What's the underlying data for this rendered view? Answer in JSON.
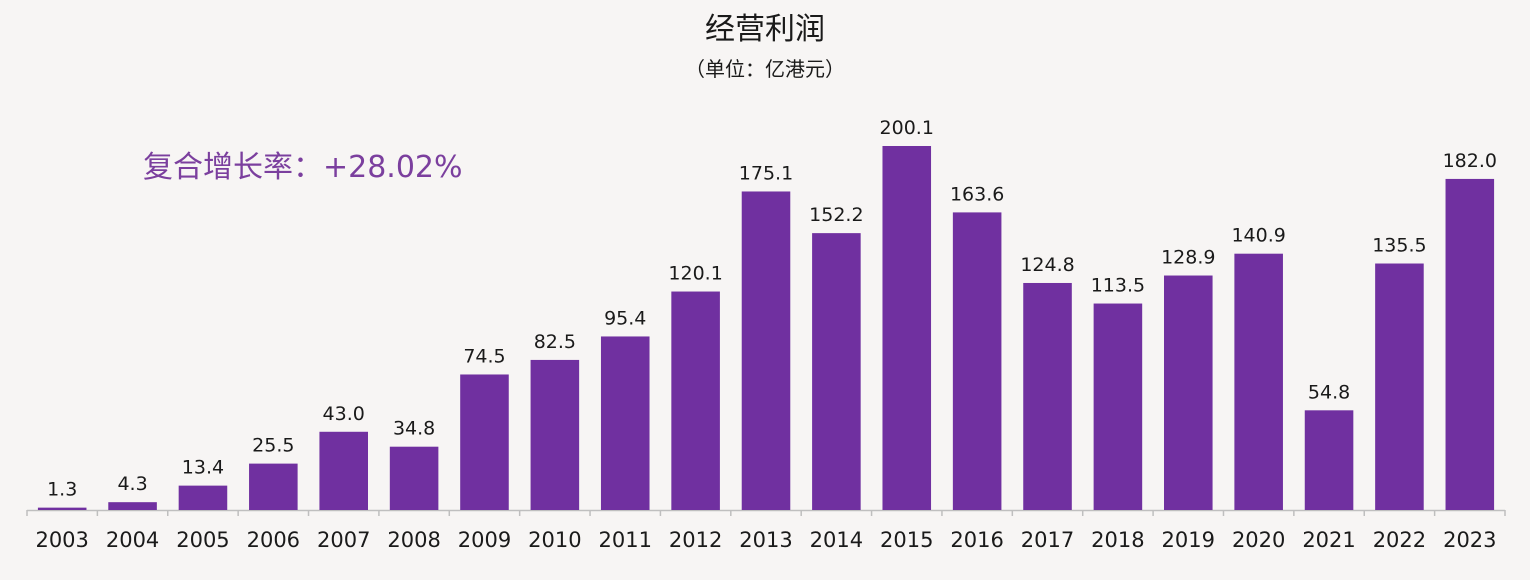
{
  "colors": {
    "bar": "#7030a0",
    "annotation": "#7b3f9e",
    "axis": "#bfbfbf",
    "background": "#f7f5f4"
  },
  "chart_data": {
    "type": "bar",
    "title": "经营利润",
    "subtitle": "（单位：亿港元）",
    "annotation": "复合增长率：+28.02%",
    "categories": [
      "2003",
      "2004",
      "2005",
      "2006",
      "2007",
      "2008",
      "2009",
      "2010",
      "2011",
      "2012",
      "2013",
      "2014",
      "2015",
      "2016",
      "2017",
      "2018",
      "2019",
      "2020",
      "2021",
      "2022",
      "2023"
    ],
    "values": [
      1.3,
      4.3,
      13.4,
      25.5,
      43.0,
      34.8,
      74.5,
      82.5,
      95.4,
      120.1,
      175.1,
      152.2,
      200.1,
      163.6,
      124.8,
      113.5,
      128.9,
      140.9,
      54.8,
      135.5,
      182.0
    ],
    "value_labels": [
      "1.3",
      "4.3",
      "13.4",
      "25.5",
      "43.0",
      "34.8",
      "74.5",
      "82.5",
      "95.4",
      "120.1",
      "175.1",
      "152.2",
      "200.1",
      "163.6",
      "124.8",
      "113.5",
      "128.9",
      "140.9",
      "54.8",
      "135.5",
      "182.0"
    ],
    "ylim": [
      0,
      200.1
    ],
    "grid": false,
    "legend": "none"
  }
}
